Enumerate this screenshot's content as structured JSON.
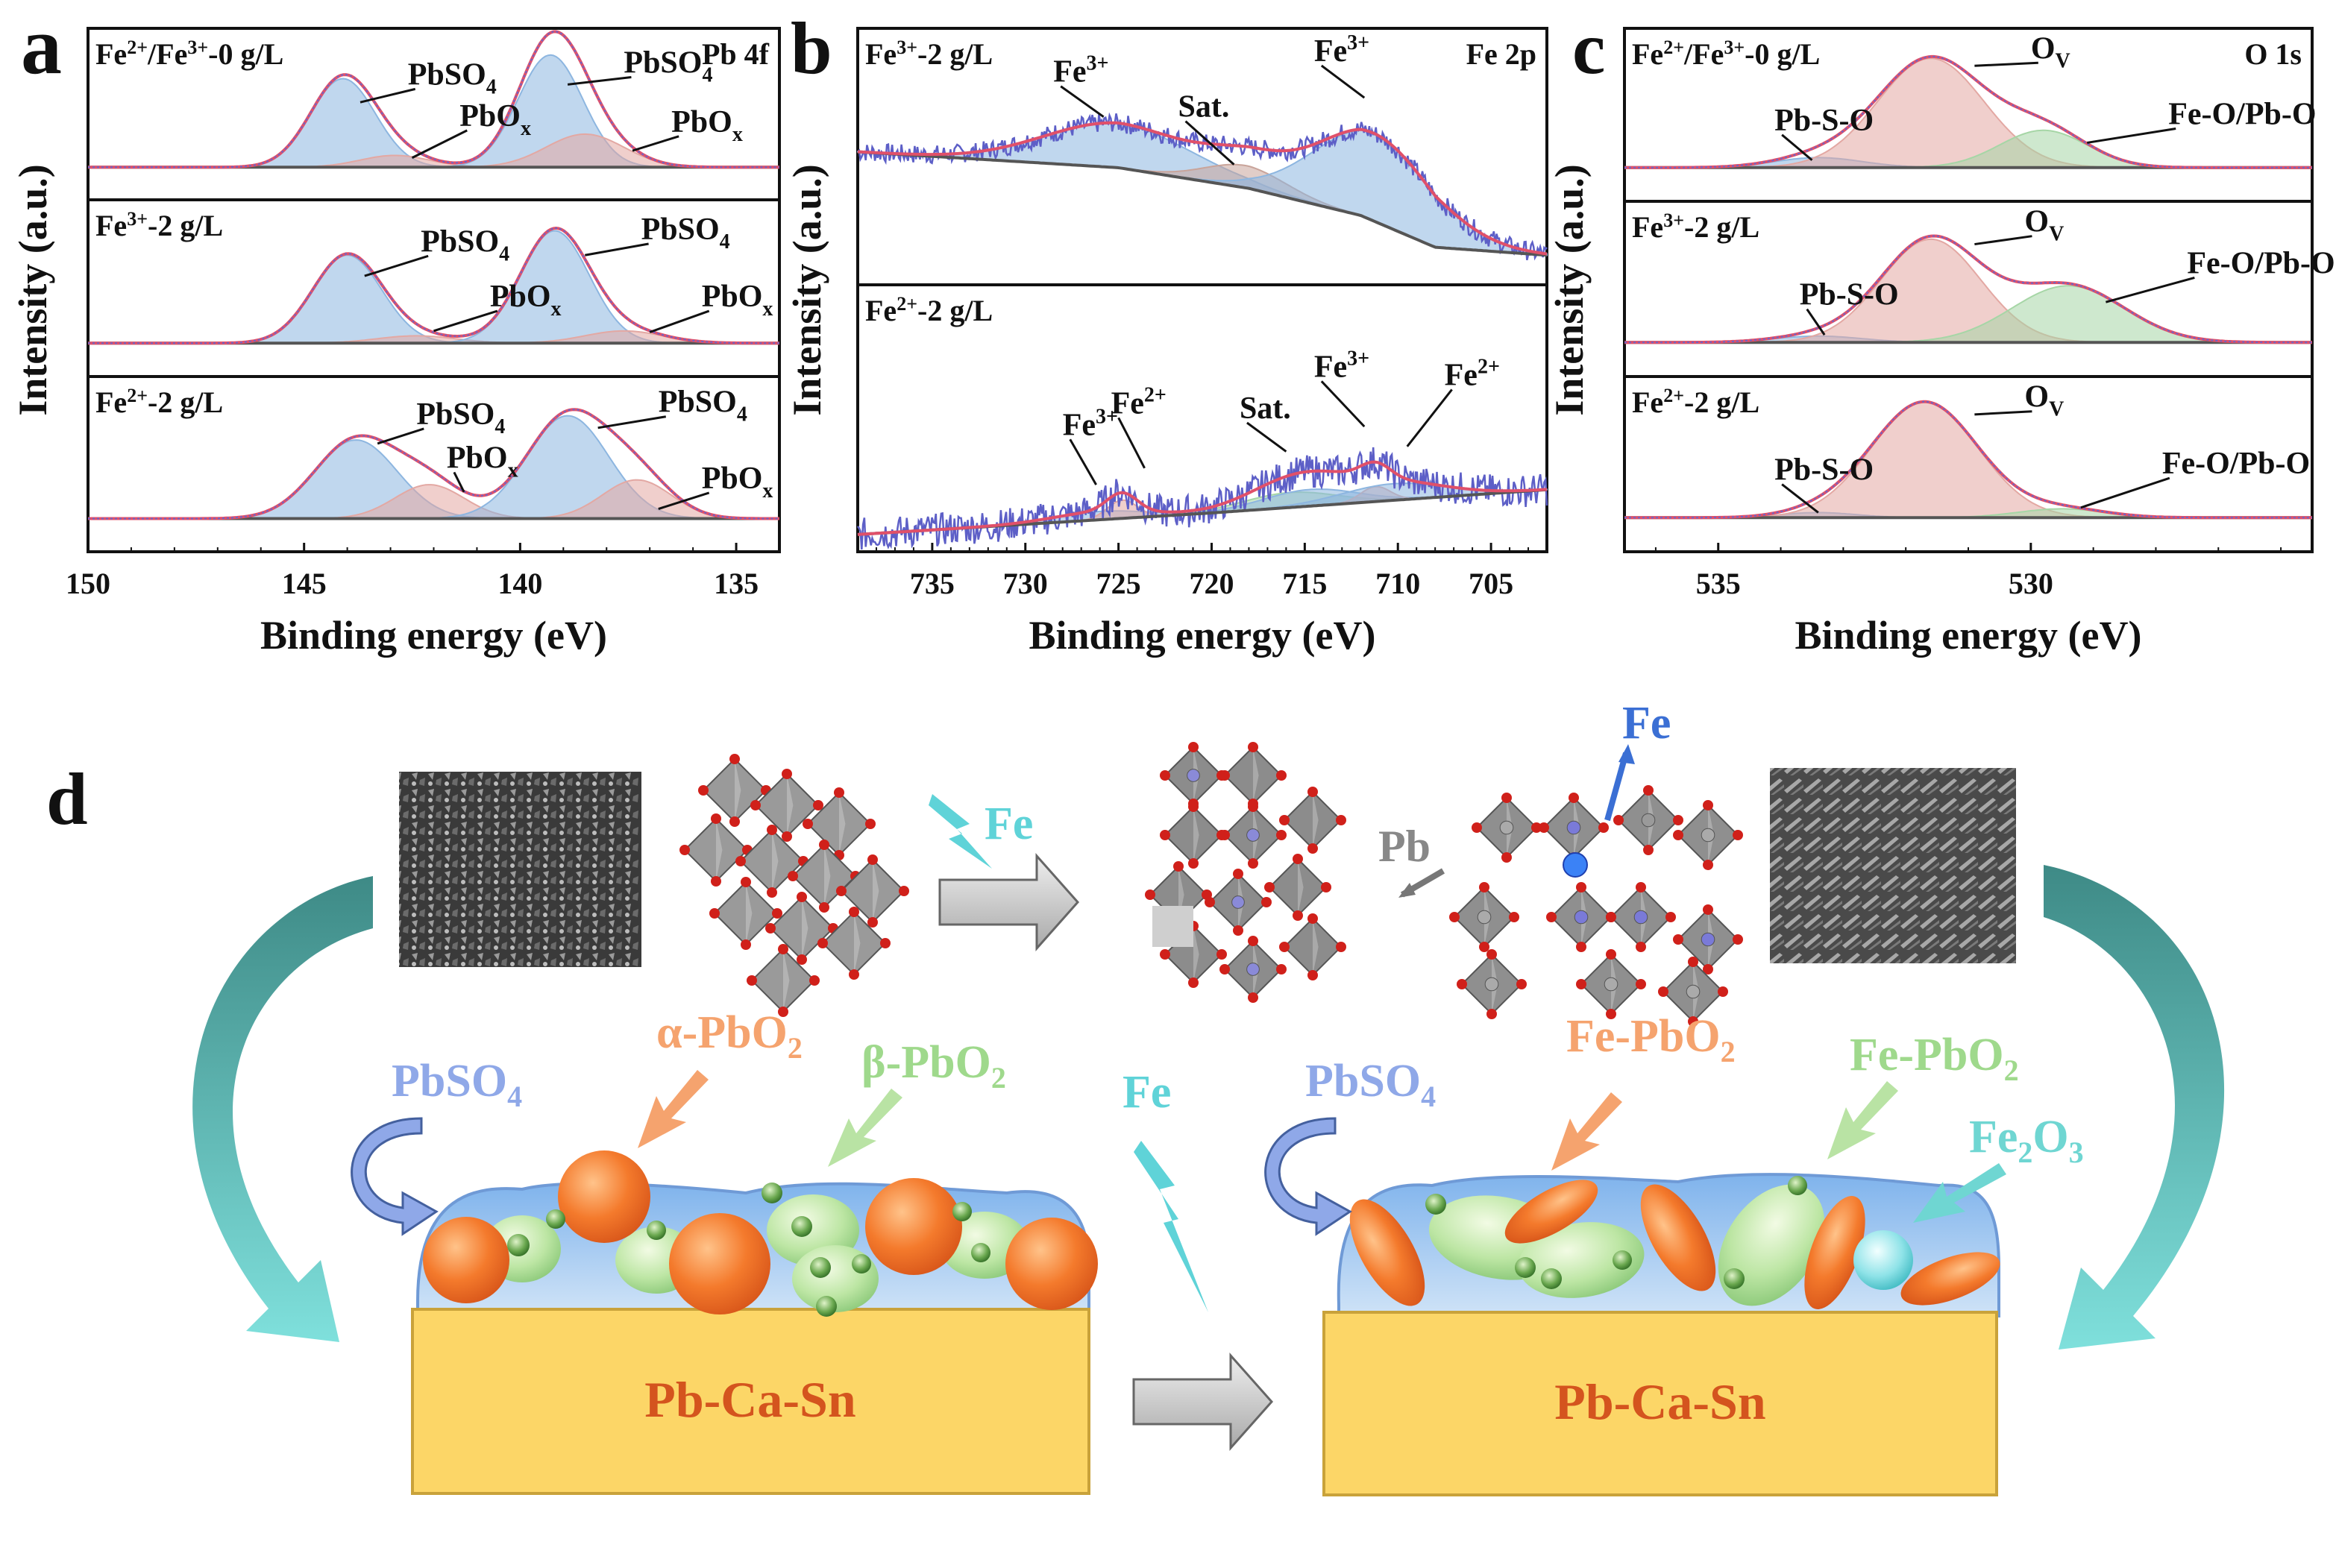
{
  "chart_data": [
    {
      "panel": "a",
      "type": "line",
      "corner_label": "Pb 4f",
      "xlabel": "Binding energy (eV)",
      "ylabel": "Intensity (a.u.)",
      "xlim": [
        150,
        134
      ],
      "xticks": [
        "150",
        "145",
        "140",
        "135"
      ],
      "subplots": [
        {
          "label": "Fe2+/Fe3+-0 g/L",
          "components": [
            {
              "name": "PbSO4",
              "center": 144.1,
              "width": 0.75,
              "amp": 0.75,
              "color": "#8db6e0"
            },
            {
              "name": "PbOx",
              "center": 142.9,
              "width": 0.8,
              "amp": 0.1,
              "color": "#e3a8a3"
            },
            {
              "name": "PbSO4",
              "center": 139.3,
              "width": 0.75,
              "amp": 0.95,
              "color": "#8db6e0"
            },
            {
              "name": "PbOx",
              "center": 138.5,
              "width": 0.9,
              "amp": 0.28,
              "color": "#e3a8a3"
            }
          ],
          "annotations": [
            {
              "text": "PbSO",
              "sub": "4",
              "x": 142.6,
              "y": 0.7,
              "ax": 143.7,
              "ay": 0.55
            },
            {
              "text": "PbO",
              "sub": "x",
              "x": 141.4,
              "y": 0.35,
              "ax": 142.5,
              "ay": 0.08
            },
            {
              "text": "PbSO",
              "sub": "4",
              "x": 137.6,
              "y": 0.8,
              "ax": 138.9,
              "ay": 0.7
            },
            {
              "text": "PbO",
              "sub": "x",
              "x": 136.5,
              "y": 0.3,
              "ax": 137.4,
              "ay": 0.14
            }
          ]
        },
        {
          "label": "Fe3+-2 g/L",
          "components": [
            {
              "name": "PbSO4",
              "center": 144.0,
              "width": 0.8,
              "amp": 0.72,
              "color": "#8db6e0"
            },
            {
              "name": "PbOx",
              "center": 142.4,
              "width": 0.9,
              "amp": 0.06,
              "color": "#e3a8a3"
            },
            {
              "name": "PbSO4",
              "center": 139.2,
              "width": 0.8,
              "amp": 0.92,
              "color": "#8db6e0"
            },
            {
              "name": "PbOx",
              "center": 137.6,
              "width": 0.9,
              "amp": 0.1,
              "color": "#e3a8a3"
            }
          ],
          "annotations": [
            {
              "text": "PbSO",
              "sub": "4",
              "x": 142.3,
              "y": 0.75,
              "ax": 143.6,
              "ay": 0.55
            },
            {
              "text": "PbO",
              "sub": "x",
              "x": 140.7,
              "y": 0.3,
              "ax": 142.0,
              "ay": 0.1
            },
            {
              "text": "PbSO",
              "sub": "4",
              "x": 137.2,
              "y": 0.85,
              "ax": 138.5,
              "ay": 0.72
            },
            {
              "text": "PbO",
              "sub": "x",
              "x": 135.8,
              "y": 0.3,
              "ax": 137.0,
              "ay": 0.09
            }
          ]
        },
        {
          "label": "Fe2+-2 g/L",
          "components": [
            {
              "name": "PbSO4",
              "center": 143.8,
              "width": 0.95,
              "amp": 0.65,
              "color": "#8db6e0"
            },
            {
              "name": "PbOx",
              "center": 142.1,
              "width": 0.8,
              "amp": 0.28,
              "color": "#e3a8a3"
            },
            {
              "name": "PbSO4",
              "center": 138.9,
              "width": 0.95,
              "amp": 0.85,
              "color": "#8db6e0"
            },
            {
              "name": "PbOx",
              "center": 137.3,
              "width": 0.8,
              "amp": 0.32,
              "color": "#e3a8a3"
            }
          ],
          "annotations": [
            {
              "text": "PbSO",
              "sub": "4",
              "x": 142.4,
              "y": 0.78,
              "ax": 143.3,
              "ay": 0.62
            },
            {
              "text": "PbO",
              "sub": "x",
              "x": 141.7,
              "y": 0.42,
              "ax": 141.3,
              "ay": 0.22
            },
            {
              "text": "PbSO",
              "sub": "4",
              "x": 136.8,
              "y": 0.88,
              "ax": 138.2,
              "ay": 0.75
            },
            {
              "text": "PbO",
              "sub": "x",
              "x": 135.8,
              "y": 0.25,
              "ax": 136.8,
              "ay": 0.08
            }
          ]
        }
      ]
    },
    {
      "panel": "b",
      "type": "line",
      "corner_label": "Fe 2p",
      "xlabel": "Binding energy (eV)",
      "ylabel": "Intensity (a.u.)",
      "xlim": [
        739,
        702
      ],
      "xticks": [
        "735",
        "730",
        "725",
        "720",
        "715",
        "710",
        "705"
      ],
      "subplots": [
        {
          "label": "Fe3+-2 g/L",
          "background": [
            [
              739,
              0.18
            ],
            [
              725,
              0.08
            ],
            [
              718,
              -0.05
            ],
            [
              712,
              -0.22
            ],
            [
              708,
              -0.42
            ],
            [
              702,
              -0.47
            ]
          ],
          "components": [
            {
              "name": "Fe3+",
              "center": 725.0,
              "width": 4.0,
              "amp": 0.28,
              "color": "#8db6e0"
            },
            {
              "name": "Sat.",
              "center": 718.2,
              "width": 2.2,
              "amp": 0.14,
              "color": "#c9a49a"
            },
            {
              "name": "Fe3+",
              "center": 711.3,
              "width": 3.2,
              "amp": 0.55,
              "color": "#8db6e0"
            }
          ],
          "noise": 0.06,
          "annotations": [
            {
              "text": "Fe",
              "sup": "3+",
              "x": 728.5,
              "y": 0.62,
              "ax": 725.8,
              "ay": 0.4
            },
            {
              "text": "Sat.",
              "sup": "",
              "x": 721.8,
              "y": 0.4,
              "ax": 718.8,
              "ay": 0.1
            },
            {
              "text": "Fe",
              "sup": "3+",
              "x": 714.5,
              "y": 0.75,
              "ax": 711.8,
              "ay": 0.52
            }
          ]
        },
        {
          "label": "Fe2+-2 g/L",
          "background": [
            [
              739,
              -0.55
            ],
            [
              720,
              -0.42
            ],
            [
              702,
              -0.28
            ]
          ],
          "components": [
            {
              "name": "Fe3+",
              "center": 726.0,
              "width": 2.5,
              "amp": 0.05,
              "color": "#8db6e0"
            },
            {
              "name": "Fe2+",
              "center": 724.8,
              "width": 0.8,
              "amp": 0.11,
              "color": "#e3a8a3"
            },
            {
              "name": "Sat.",
              "center": 715.8,
              "width": 2.5,
              "amp": 0.09,
              "color": "#a6d6a6"
            },
            {
              "name": "Fe3+",
              "center": 714.7,
              "width": 2.5,
              "amp": 0.1,
              "color": "#8db6e0"
            },
            {
              "name": "Fe2+",
              "center": 711.2,
              "width": 0.8,
              "amp": 0.09,
              "color": "#e3a8a3"
            },
            {
              "name": "Fe2+",
              "center": 710.2,
              "width": 2.8,
              "amp": 0.1,
              "color": "#8db6e0"
            }
          ],
          "noise": 0.1,
          "annotations": [
            {
              "text": "Fe",
              "sup": "3+",
              "x": 728.0,
              "y": 0.05,
              "ax": 726.2,
              "ay": -0.25
            },
            {
              "text": "Fe",
              "sup": "2+",
              "x": 725.4,
              "y": 0.18,
              "ax": 723.6,
              "ay": -0.15
            },
            {
              "text": "Sat.",
              "sup": "",
              "x": 718.5,
              "y": 0.15,
              "ax": 716.0,
              "ay": -0.05
            },
            {
              "text": "Fe",
              "sup": "3+",
              "x": 714.5,
              "y": 0.4,
              "ax": 711.8,
              "ay": 0.1
            },
            {
              "text": "Fe",
              "sup": "2+",
              "x": 707.5,
              "y": 0.35,
              "ax": 709.5,
              "ay": -0.02
            }
          ]
        }
      ]
    },
    {
      "panel": "c",
      "type": "line",
      "corner_label": "O 1s",
      "xlabel": "Binding energy (eV)",
      "ylabel": "Intensity (a.u.)",
      "xlim": [
        536.5,
        525.5
      ],
      "xticks": [
        "535",
        "530"
      ],
      "subplots": [
        {
          "label": "Fe2+/Fe3+-0 g/L",
          "components": [
            {
              "name": "Pb-S-O",
              "center": 533.4,
              "width": 0.7,
              "amp": 0.08,
              "color": "#8db6e0"
            },
            {
              "name": "OV",
              "center": 531.6,
              "width": 0.85,
              "amp": 0.88,
              "color": "#e3a8a3"
            },
            {
              "name": "Fe-O/Pb-O",
              "center": 529.8,
              "width": 0.7,
              "amp": 0.3,
              "color": "#a6d6a6"
            }
          ],
          "annotations": [
            {
              "text": "Pb-S-O",
              "sub": "",
              "x": 534.1,
              "y": 0.3,
              "ax": 533.5,
              "ay": 0.06
            },
            {
              "text": "O",
              "sub": "V",
              "x": 530.0,
              "y": 0.88,
              "ax": 530.9,
              "ay": 0.82
            },
            {
              "text": "Fe-O/Pb-O",
              "sub": "",
              "x": 527.8,
              "y": 0.35,
              "ax": 529.1,
              "ay": 0.2
            }
          ]
        },
        {
          "label": "Fe3+-2 g/L",
          "components": [
            {
              "name": "Pb-S-O",
              "center": 533.4,
              "width": 0.7,
              "amp": 0.05,
              "color": "#8db6e0"
            },
            {
              "name": "OV",
              "center": 531.6,
              "width": 0.8,
              "amp": 0.82,
              "color": "#e3a8a3"
            },
            {
              "name": "Fe-O/Pb-O",
              "center": 529.4,
              "width": 0.9,
              "amp": 0.45,
              "color": "#a6d6a6"
            }
          ],
          "annotations": [
            {
              "text": "Pb-S-O",
              "sub": "",
              "x": 533.7,
              "y": 0.3,
              "ax": 533.3,
              "ay": 0.06
            },
            {
              "text": "O",
              "sub": "V",
              "x": 530.1,
              "y": 0.88,
              "ax": 530.9,
              "ay": 0.78
            },
            {
              "text": "Fe-O/Pb-O",
              "sub": "",
              "x": 527.5,
              "y": 0.55,
              "ax": 528.8,
              "ay": 0.32
            }
          ]
        },
        {
          "label": "Fe2+-2 g/L",
          "components": [
            {
              "name": "Pb-S-O",
              "center": 533.4,
              "width": 0.6,
              "amp": 0.04,
              "color": "#8db6e0"
            },
            {
              "name": "OV",
              "center": 531.7,
              "width": 0.85,
              "amp": 0.92,
              "color": "#e3a8a3"
            },
            {
              "name": "Fe-O/Pb-O",
              "center": 529.5,
              "width": 0.7,
              "amp": 0.07,
              "color": "#a6d6a6"
            }
          ],
          "annotations": [
            {
              "text": "Pb-S-O",
              "sub": "",
              "x": 534.1,
              "y": 0.3,
              "ax": 533.4,
              "ay": 0.04
            },
            {
              "text": "O",
              "sub": "V",
              "x": 530.1,
              "y": 0.88,
              "ax": 530.9,
              "ay": 0.82
            },
            {
              "text": "Fe-O/Pb-O",
              "sub": "",
              "x": 527.9,
              "y": 0.35,
              "ax": 529.2,
              "ay": 0.08
            }
          ]
        }
      ]
    }
  ],
  "panel_labels": {
    "a": "a",
    "b": "b",
    "c": "c",
    "d": "d"
  },
  "schematic": {
    "left_fe_label": "Fe",
    "top_fe_label": "Fe",
    "mid_fe_label": "Fe",
    "pb_label": "Pb",
    "alpha_label": "α-PbO",
    "alpha_sub": "2",
    "beta_label": "β-PbO",
    "beta_sub": "2",
    "pbso4_left": "PbSO",
    "pbso4_left_sub": "4",
    "pbso4_right": "PbSO",
    "pbso4_right_sub": "4",
    "fepbo2_a": "Fe-PbO",
    "fepbo2_a_sub": "2",
    "fepbo2_b": "Fe-PbO",
    "fepbo2_b_sub": "2",
    "fe2o3": "Fe",
    "fe2o3_sub1": "2",
    "fe2o3_mid": "O",
    "fe2o3_sub2": "3",
    "substrate_left": "Pb-Ca-Sn",
    "substrate_right": "Pb-Ca-Sn",
    "colors": {
      "alpha": "#f5a36e",
      "beta": "#9fd98c",
      "pbso4": "#8fa8e8",
      "fe_cyan": "#5fd3d8",
      "substrate": "#fcd667",
      "substrate_text": "#d4541e",
      "arrow_teal_dark": "#3e8a86",
      "arrow_teal_light": "#6fd6d2"
    }
  }
}
